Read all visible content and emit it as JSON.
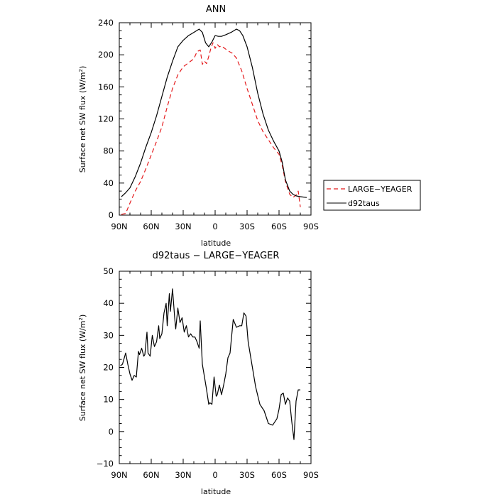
{
  "chart_data": [
    {
      "type": "line",
      "title": "ANN",
      "xlabel": "latitude",
      "ylabel": "Surface net SW flux (W/m",
      "ylabel_sup": "2",
      "ylabel_close": ")",
      "xlim": [
        90,
        -90
      ],
      "ylim": [
        0,
        240
      ],
      "xticks": [
        90,
        60,
        30,
        0,
        -30,
        -60,
        -90
      ],
      "xtick_labels": [
        "90N",
        "60N",
        "30N",
        "0",
        "30S",
        "60S",
        "90S"
      ],
      "yticks": [
        0,
        40,
        80,
        120,
        160,
        200,
        240
      ],
      "ytick_labels": [
        "0",
        "40",
        "80",
        "120",
        "160",
        "200",
        "240"
      ],
      "legend_position": "right",
      "series": [
        {
          "name": "LARGE−YEAGER",
          "color": "#e41a1c",
          "dash": "dashed",
          "x": [
            88,
            84,
            80,
            75,
            70,
            65,
            60,
            55,
            50,
            45,
            40,
            35,
            30,
            25,
            20,
            17,
            14,
            12,
            10,
            8,
            6,
            4,
            2,
            0,
            -2,
            -4,
            -6,
            -8,
            -12,
            -16,
            -20,
            -25,
            -30,
            -35,
            -40,
            -45,
            -50,
            -55,
            -60,
            -63,
            -66,
            -70,
            -73,
            -76,
            -78,
            -80
          ],
          "values": [
            1,
            2,
            15,
            30,
            42,
            58,
            75,
            92,
            110,
            135,
            158,
            175,
            185,
            190,
            195,
            204,
            206,
            188,
            192,
            189,
            198,
            208,
            215,
            208,
            213,
            210,
            211,
            209,
            205,
            202,
            196,
            180,
            158,
            138,
            118,
            104,
            94,
            84,
            76,
            62,
            42,
            26,
            22,
            25,
            30,
            10
          ]
        },
        {
          "name": "d92taus",
          "color": "#000000",
          "dash": "solid",
          "x": [
            88,
            84,
            80,
            75,
            70,
            65,
            60,
            55,
            50,
            45,
            40,
            35,
            30,
            25,
            20,
            15,
            12,
            9,
            6,
            3,
            0,
            -3,
            -6,
            -10,
            -15,
            -20,
            -23,
            -26,
            -30,
            -35,
            -40,
            -45,
            -50,
            -55,
            -60,
            -63,
            -66,
            -70,
            -73,
            -76,
            -80,
            -86
          ],
          "values": [
            23,
            28,
            34,
            48,
            65,
            85,
            103,
            124,
            148,
            172,
            192,
            210,
            218,
            224,
            228,
            232,
            228,
            215,
            210,
            216,
            224,
            223,
            223,
            225,
            228,
            232,
            230,
            224,
            210,
            184,
            152,
            126,
            106,
            92,
            80,
            66,
            44,
            30,
            26,
            24,
            23,
            22
          ]
        }
      ]
    },
    {
      "type": "line",
      "title": "d92taus − LARGE−YEAGER",
      "xlabel": "latitude",
      "ylabel": "Surface net SW flux (W/m",
      "ylabel_sup": "2",
      "ylabel_close": ")",
      "xlim": [
        90,
        -90
      ],
      "ylim": [
        -10,
        50
      ],
      "xticks": [
        90,
        60,
        30,
        0,
        -30,
        -60,
        -90
      ],
      "xtick_labels": [
        "90N",
        "60N",
        "30N",
        "0",
        "30S",
        "60S",
        "90S"
      ],
      "yticks": [
        -10,
        0,
        10,
        20,
        30,
        40,
        50
      ],
      "ytick_labels": [
        "−10",
        "0",
        "10",
        "20",
        "30",
        "40",
        "50"
      ],
      "series": [
        {
          "name": "d92taus − LARGE−YEAGER",
          "color": "#000000",
          "dash": "solid",
          "x": [
            89,
            87,
            84,
            82,
            80,
            78,
            76,
            74,
            72,
            71,
            69,
            67,
            66,
            64,
            63,
            61,
            59,
            57,
            55,
            53,
            52,
            50,
            48,
            46,
            45,
            43,
            42,
            40,
            38,
            37,
            35,
            33,
            31,
            29,
            27,
            25,
            23,
            21,
            19,
            17,
            15,
            14,
            12,
            10,
            8,
            6,
            5,
            3,
            1,
            -1,
            -2,
            -4,
            -6,
            -8,
            -10,
            -12,
            -14,
            -17,
            -20,
            -23,
            -25,
            -27,
            -29,
            -31,
            -33,
            -35,
            -38,
            -42,
            -46,
            -50,
            -54,
            -58,
            -60,
            -62,
            -64,
            -66,
            -68,
            -70,
            -72,
            -74,
            -76,
            -78,
            -80
          ],
          "values": [
            20.5,
            21,
            24.5,
            21,
            18,
            16,
            17.5,
            17,
            25,
            24,
            26,
            23.5,
            24,
            31,
            24.5,
            23.5,
            30,
            26.5,
            28,
            33,
            29,
            30.5,
            37,
            40,
            33,
            43,
            37.5,
            44.5,
            35.5,
            32,
            38.5,
            34,
            35.5,
            31,
            33,
            29.5,
            30.5,
            29.5,
            29.5,
            28,
            26,
            34.5,
            21,
            17,
            13,
            8.5,
            9,
            8.5,
            17,
            11,
            11.5,
            14.5,
            11.5,
            14.5,
            18,
            23,
            24.5,
            35,
            32.5,
            33,
            33,
            37,
            36,
            28,
            24,
            20,
            14,
            8.5,
            6.5,
            2.5,
            2,
            4,
            7,
            11.5,
            12,
            8.5,
            10.5,
            9.5,
            3,
            -2.5,
            9.5,
            13,
            13
          ]
        }
      ]
    }
  ]
}
